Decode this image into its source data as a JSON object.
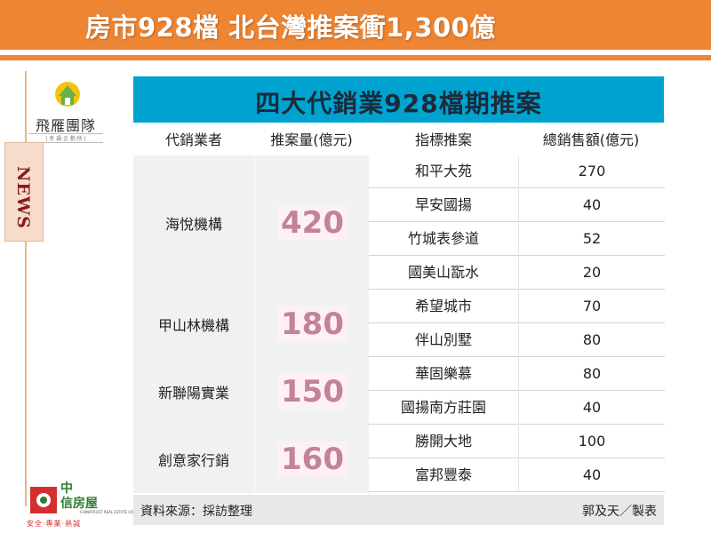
{
  "header": {
    "title": "房市928檔 北台灣推案衝1,300億"
  },
  "logo_top": {
    "name": "飛雁團隊",
    "sub": "| 幸 福 企 劃 所 |"
  },
  "side_tab": {
    "label": "NEWS"
  },
  "logo_bottom": {
    "brand_line1": "中",
    "brand_line2": "信房屋",
    "english": "CHINATRUST REAL ESTATE CO.",
    "slogan": "安全‧專業‧熱誠"
  },
  "table": {
    "title": "四大代銷業928檔期推案",
    "columns": [
      "代銷業者",
      "推案量(億元)",
      "指標推案",
      "總銷售額(億元)"
    ],
    "groups": [
      {
        "company": "海悅機構",
        "volume": "420",
        "projects": [
          {
            "name": "和平大苑",
            "amount": "270"
          },
          {
            "name": "早安國揚",
            "amount": "40"
          },
          {
            "name": "竹城表參道",
            "amount": "52"
          },
          {
            "name": "國美山翫水",
            "amount": "20"
          }
        ]
      },
      {
        "company": "甲山林機構",
        "volume": "180",
        "projects": [
          {
            "name": "希望城市",
            "amount": "70"
          },
          {
            "name": "伴山別墅",
            "amount": "80"
          }
        ]
      },
      {
        "company": "新聯陽實業",
        "volume": "150",
        "projects": [
          {
            "name": "華固樂慕",
            "amount": "80"
          },
          {
            "name": "國揚南方莊園",
            "amount": "40"
          }
        ]
      },
      {
        "company": "創意家行銷",
        "volume": "160",
        "projects": [
          {
            "name": "勝開大地",
            "amount": "100"
          },
          {
            "name": "富邦豐泰",
            "amount": "40"
          }
        ]
      }
    ],
    "footer": {
      "source": "資料來源：採訪整理",
      "maker": "郭及天／製表"
    }
  },
  "colors": {
    "header_orange": "#ee8533",
    "table_title_blue": "#00a3cf",
    "volume_pink": "#c2839a",
    "news_red": "#8a1a1a"
  }
}
